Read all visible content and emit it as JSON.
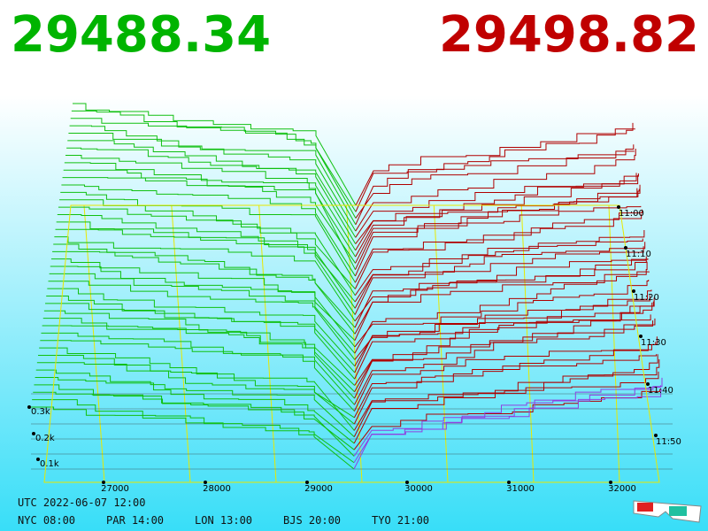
{
  "prices": {
    "bid": "29488.34",
    "ask": "29498.82"
  },
  "price_axis": [
    "27000",
    "28000",
    "29000",
    "30000",
    "31000",
    "32000"
  ],
  "volume_axis": [
    "0.3k",
    "0.2k",
    "0.1k"
  ],
  "time_axis": [
    "11:00",
    "11:10",
    "11:20",
    "11:30",
    "11:40",
    "11:50"
  ],
  "status": {
    "utc": "UTC 2022-06-07 12:00",
    "zones": [
      "NYC 08:00",
      "PAR 14:00",
      "LON 13:00",
      "BJS 20:00",
      "TYO 21:00"
    ]
  }
}
